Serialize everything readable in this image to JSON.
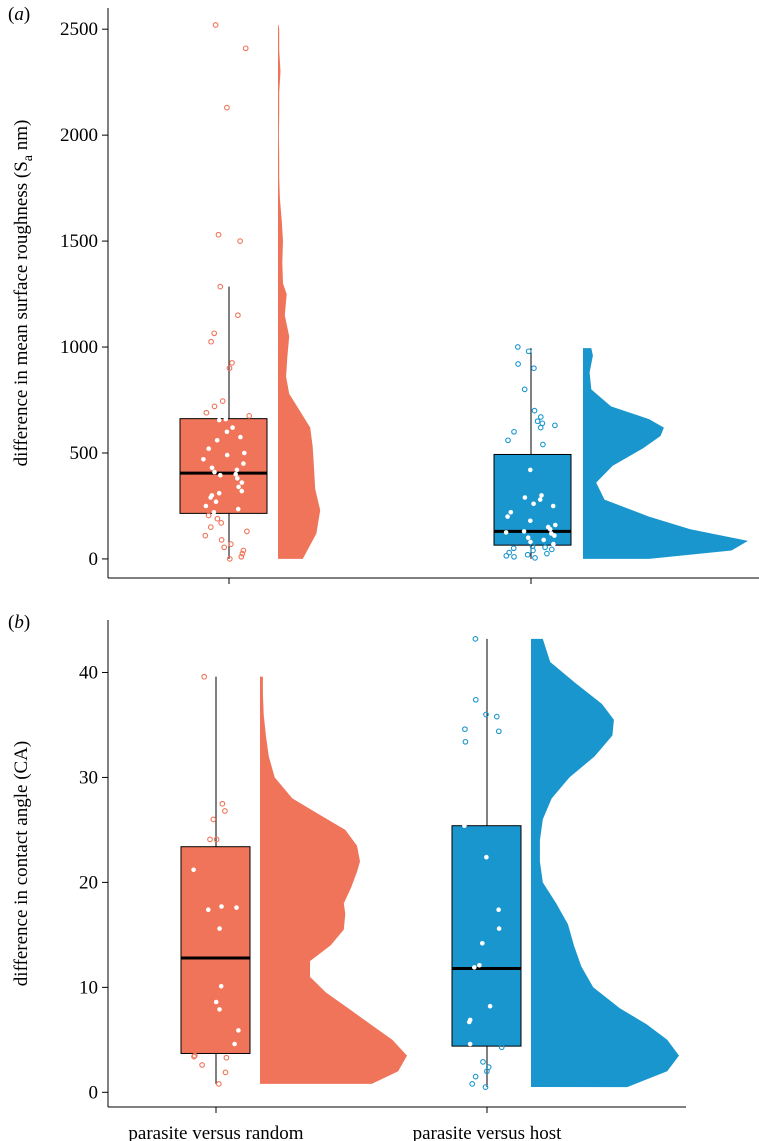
{
  "chart_data": [
    {
      "type": "raincloud",
      "panel_label": "(a)",
      "ylabel": "difference in mean surface roughness (Sa nm)",
      "ylabel_main": "difference in mean surface roughness (S",
      "ylabel_sub": "a",
      "ylabel_end": " nm)",
      "ylim": [
        -90,
        2600
      ],
      "yticks": [
        0,
        500,
        1000,
        1500,
        2000,
        2500
      ],
      "grid": false,
      "categories": [
        "parasite versus random",
        "parasite versus host"
      ],
      "series": [
        {
          "category": "parasite versus random",
          "color": "#f07459",
          "box": {
            "min": 0,
            "q1": 215,
            "median": 405,
            "q3": 662,
            "max": 1285
          },
          "points": [
            2520,
            2410,
            2130,
            1530,
            1500,
            1285,
            1150,
            1065,
            1025,
            925,
            900,
            745,
            720,
            690,
            675,
            660,
            655,
            620,
            600,
            575,
            560,
            520,
            500,
            490,
            470,
            450,
            430,
            420,
            410,
            400,
            395,
            380,
            360,
            340,
            320,
            310,
            300,
            290,
            270,
            250,
            235,
            220,
            205,
            190,
            170,
            150,
            130,
            110,
            90,
            70,
            55,
            40,
            25,
            10,
            0
          ],
          "density": {
            "y": [
              0,
              120,
              230,
              330,
              430,
              530,
              620,
              700,
              780,
              860,
              950,
              1050,
              1150,
              1250,
              1300,
              1400,
              1500,
              1600,
              1700,
              1800,
              1900,
              2000,
              2100,
              2200,
              2300,
              2400,
              2500,
              2520
            ],
            "w": [
              0.4,
              0.62,
              0.68,
              0.6,
              0.58,
              0.56,
              0.52,
              0.35,
              0.18,
              0.13,
              0.15,
              0.18,
              0.11,
              0.14,
              0.08,
              0.07,
              0.08,
              0.06,
              0.03,
              0.02,
              0.02,
              0.015,
              0.02,
              0.02,
              0.04,
              0.02,
              0.02,
              0.01
            ]
          }
        },
        {
          "category": "parasite versus host",
          "color": "#1a96ce",
          "box": {
            "min": 0,
            "q1": 65,
            "median": 130,
            "q3": 493,
            "max": 995
          },
          "points": [
            1000,
            980,
            920,
            900,
            800,
            700,
            670,
            650,
            640,
            630,
            620,
            600,
            560,
            540,
            420,
            300,
            290,
            280,
            260,
            250,
            220,
            200,
            180,
            160,
            150,
            140,
            130,
            125,
            120,
            110,
            100,
            90,
            80,
            70,
            60,
            55,
            50,
            45,
            40,
            30,
            25,
            20,
            15,
            10,
            5
          ],
          "density": {
            "y": [
              0,
              40,
              85,
              140,
              200,
              280,
              360,
              440,
              520,
              580,
              620,
              660,
              720,
              800,
              880,
              960,
              995
            ],
            "w": [
              0.4,
              0.9,
              1.0,
              0.65,
              0.4,
              0.13,
              0.08,
              0.18,
              0.36,
              0.47,
              0.49,
              0.4,
              0.17,
              0.05,
              0.04,
              0.06,
              0.05
            ]
          }
        }
      ]
    },
    {
      "type": "raincloud",
      "panel_label": "(b)",
      "ylabel": "difference in contact angle (CA)",
      "ylim": [
        -1.4,
        45
      ],
      "yticks": [
        0,
        10,
        20,
        30,
        40
      ],
      "grid": false,
      "categories": [
        "parasite versus random",
        "parasite versus host"
      ],
      "series": [
        {
          "category": "parasite versus random",
          "color": "#f07459",
          "box": {
            "min": 0.8,
            "q1": 3.7,
            "median": 12.8,
            "q3": 23.4,
            "max": 39.6
          },
          "points": [
            39.6,
            27.5,
            26.8,
            26.0,
            24.1,
            24.1,
            21.2,
            17.7,
            17.6,
            17.4,
            15.6,
            10.1,
            8.6,
            7.9,
            5.9,
            4.6,
            3.5,
            3.4,
            3.3,
            2.6,
            1.9,
            0.8
          ],
          "density": {
            "y": [
              0.8,
              2.0,
              3.5,
              5.0,
              6.5,
              8.0,
              9.5,
              11.0,
              12.5,
              14.0,
              15.5,
              17.0,
              18.0,
              19.5,
              21.0,
              22.0,
              23.5,
              25.0,
              26.5,
              28.0,
              30.0,
              32.0,
              34.0,
              36.0,
              38.0,
              39.6
            ],
            "w": [
              0.76,
              0.94,
              1.0,
              0.9,
              0.75,
              0.6,
              0.45,
              0.34,
              0.34,
              0.48,
              0.57,
              0.58,
              0.57,
              0.62,
              0.66,
              0.68,
              0.66,
              0.58,
              0.4,
              0.22,
              0.1,
              0.06,
              0.04,
              0.025,
              0.02,
              0.02
            ]
          }
        },
        {
          "category": "parasite versus host",
          "color": "#1a96ce",
          "box": {
            "min": 0.5,
            "q1": 4.4,
            "median": 11.8,
            "q3": 25.4,
            "max": 43.2
          },
          "points": [
            43.2,
            37.4,
            36.0,
            35.8,
            34.6,
            34.4,
            33.4,
            25.4,
            22.4,
            17.4,
            15.6,
            14.2,
            12.1,
            11.9,
            8.2,
            6.9,
            6.7,
            4.6,
            4.3,
            2.9,
            2.4,
            2.0,
            1.5,
            0.8,
            0.5
          ],
          "density": {
            "y": [
              0.5,
              2.0,
              3.5,
              5.0,
              6.5,
              8.0,
              10.0,
              12.0,
              14.0,
              16.0,
              18.0,
              20.0,
              22.0,
              24.0,
              26.0,
              28.0,
              30.0,
              32.0,
              34.0,
              35.5,
              37.0,
              39.0,
              41.0,
              43.2
            ],
            "w": [
              0.65,
              0.92,
              1.0,
              0.92,
              0.78,
              0.6,
              0.42,
              0.34,
              0.29,
              0.25,
              0.17,
              0.08,
              0.06,
              0.06,
              0.08,
              0.14,
              0.26,
              0.43,
              0.55,
              0.56,
              0.48,
              0.3,
              0.13,
              0.08
            ]
          }
        }
      ]
    }
  ]
}
